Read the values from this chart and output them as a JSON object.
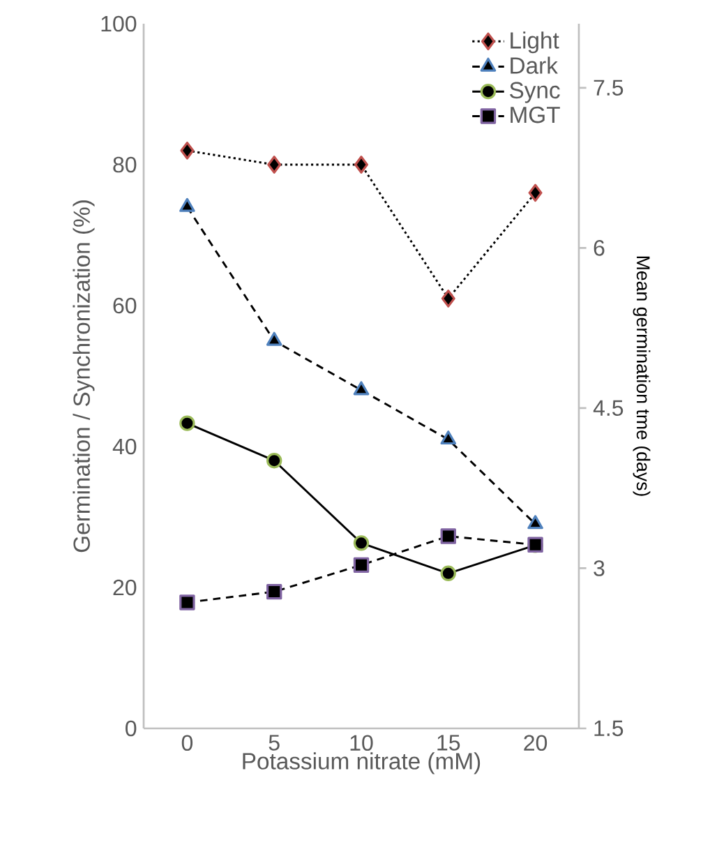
{
  "chart_data": {
    "type": "line",
    "categories": [
      "0",
      "5",
      "10",
      "15",
      "20"
    ],
    "xlabel": "Potassium nitrate (mM)",
    "ylabel": "Germination / Synchronization (%)",
    "y2label": "Mean germination tme (days)",
    "ylim": [
      0,
      100
    ],
    "yticks": [
      0,
      20,
      40,
      60,
      80,
      100
    ],
    "y2lim": [
      1.5,
      8.1
    ],
    "y2ticks": [
      1.5,
      3,
      4.5,
      6,
      7.5
    ],
    "legend": "top right",
    "series": [
      {
        "name": "Light",
        "color": "#c0504d",
        "marker": "diamond",
        "line_style": "dotted",
        "values": [
          82,
          80,
          80,
          61,
          76
        ]
      },
      {
        "name": "Dark",
        "color": "#4f81bd",
        "marker": "triangle",
        "line_style": "dashed",
        "values": [
          74,
          55,
          48,
          41,
          29
        ]
      },
      {
        "name": "Sync",
        "color": "#9bbb59",
        "marker": "circle",
        "line_style": "solid",
        "values": [
          43.3,
          38,
          26.3,
          22,
          26
        ]
      },
      {
        "name": "MGT",
        "color": "#8064a2",
        "marker": "square",
        "line_style": "dashed",
        "axis": "y2",
        "values": [
          2.68,
          2.78,
          3.03,
          3.3,
          3.22
        ]
      }
    ]
  }
}
